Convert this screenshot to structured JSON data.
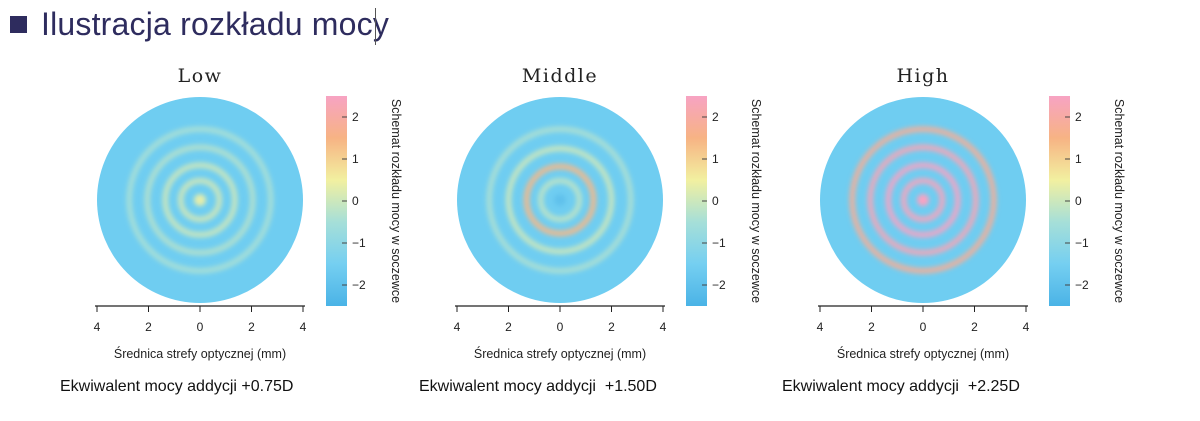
{
  "header": {
    "title": "Ilustracja rozkładu mocy"
  },
  "colors": {
    "title": "#2e2c5e",
    "lens_base": "#6fcdf1",
    "colorbar_stops": [
      "#4ab3e6",
      "#75cff1",
      "#a6dfd8",
      "#f2f0a0",
      "#f7b384",
      "#f7a3c3"
    ]
  },
  "chart_data": [
    {
      "type": "heatmap",
      "title": "Low",
      "xlabel": "Średnica strefy optycznej (mm)",
      "x_ticks": [
        "4",
        "2",
        "0",
        "2",
        "4"
      ],
      "colorbar_label": "Schemat rozkładu mocy w soczewce",
      "colorbar_range": [
        -2.5,
        2.5
      ],
      "colorbar_ticks": [
        "2",
        "1",
        "0",
        "-1",
        "-2"
      ],
      "caption": "Ekwiwalent mocy addycji +0.75D",
      "add_power": 0.75,
      "rings": [
        {
          "radius_mm": 0.0,
          "power": 0.3
        },
        {
          "radius_mm": 0.75,
          "power": 0.05
        },
        {
          "radius_mm": 1.35,
          "power": 0.0
        },
        {
          "radius_mm": 2.05,
          "power": -0.3
        },
        {
          "radius_mm": 2.75,
          "power": -0.45
        }
      ]
    },
    {
      "type": "heatmap",
      "title": "Middle",
      "xlabel": "Średnica strefy optycznej (mm)",
      "x_ticks": [
        "4",
        "2",
        "0",
        "2",
        "4"
      ],
      "colorbar_label": "Schemat rozkładu mocy w soczewce",
      "colorbar_range": [
        -2.5,
        2.5
      ],
      "colorbar_ticks": [
        "2",
        "1",
        "0",
        "-1",
        "-2"
      ],
      "caption": "Ekwiwalent mocy addycji  +1.50D",
      "add_power": 1.5,
      "rings": [
        {
          "radius_mm": 0.0,
          "power": -2.0
        },
        {
          "radius_mm": 0.75,
          "power": -0.2
        },
        {
          "radius_mm": 1.3,
          "power": 1.4
        },
        {
          "radius_mm": 2.0,
          "power": 0.0
        },
        {
          "radius_mm": 2.75,
          "power": -0.4
        }
      ]
    },
    {
      "type": "heatmap",
      "title": "High",
      "xlabel": "Średnica strefy optycznej (mm)",
      "x_ticks": [
        "4",
        "2",
        "0",
        "2",
        "4"
      ],
      "colorbar_label": "Schemat rozkładu mocy w soczewce",
      "colorbar_range": [
        -2.5,
        2.5
      ],
      "colorbar_ticks": [
        "2",
        "1",
        "0",
        "-1",
        "-2"
      ],
      "caption": "Ekwiwalent mocy addycji  +2.25D",
      "add_power": 2.25,
      "rings": [
        {
          "radius_mm": 0.0,
          "power": 2.5
        },
        {
          "radius_mm": 0.75,
          "power": 2.4
        },
        {
          "radius_mm": 1.35,
          "power": 2.5
        },
        {
          "radius_mm": 2.05,
          "power": 2.3
        },
        {
          "radius_mm": 2.75,
          "power": 1.8
        }
      ]
    }
  ]
}
